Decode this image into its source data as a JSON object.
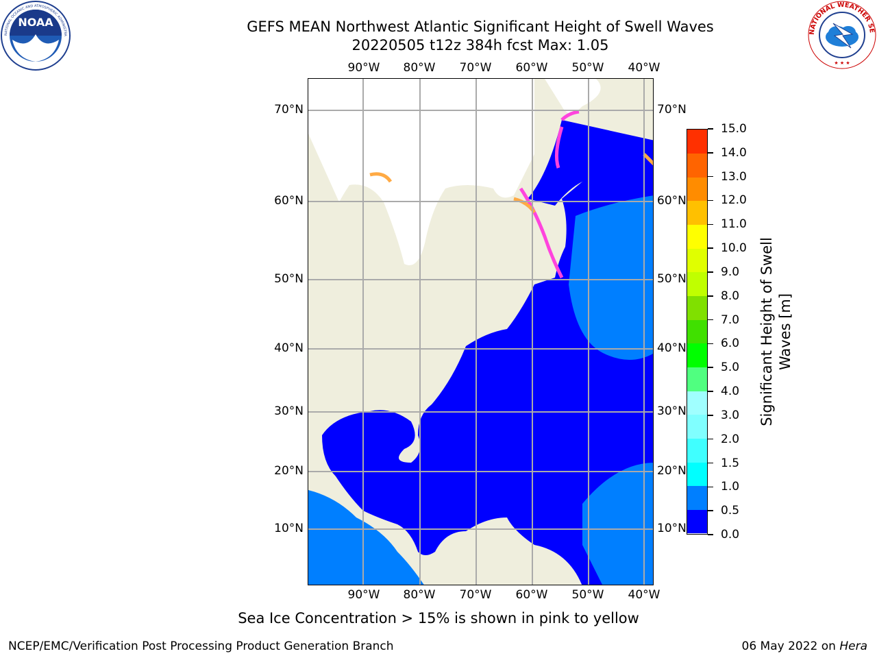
{
  "header": {
    "title_line1": "GEFS MEAN Northwest Atlantic Significant Height of Swell Waves",
    "title_line2": "20220505 t12z 384h fcst   Max: 1.05"
  },
  "logos": {
    "noaa_text": "NOAA",
    "noaa_ring_text": "NATIONAL OCEANIC AND ATMOSPHERIC ADMINISTRATION · U.S. DEPARTMENT OF COMMERCE",
    "nws_ring_text": "NATIONAL WEATHER SERVICE"
  },
  "map": {
    "lon_labels": [
      "90°W",
      "80°W",
      "70°W",
      "60°W",
      "50°W",
      "40°W"
    ],
    "lat_labels": [
      "70°N",
      "60°N",
      "50°N",
      "40°N",
      "30°N",
      "20°N",
      "10°N"
    ],
    "colors": {
      "land": "#efeedd",
      "ocean_low": "#0000ff",
      "ocean_mid": "#007fff",
      "ice_free_land": "#ffffff",
      "gridline": "#aaaaaa",
      "ice_pink": "#ff44dd",
      "ice_orange": "#ffaa44"
    }
  },
  "colorbar": {
    "title": "Significant Height of Swell Waves [m]",
    "title_line1": "Significant Height of Swell",
    "title_line2": "Waves [m]",
    "labels": [
      "0.0",
      "0.5",
      "1.0",
      "1.5",
      "2.0",
      "3.0",
      "4.0",
      "5.0",
      "6.0",
      "7.0",
      "8.0",
      "9.0",
      "10.0",
      "11.0",
      "12.0",
      "13.0",
      "14.0",
      "15.0"
    ],
    "colors": [
      "#0000ff",
      "#007fff",
      "#00ffff",
      "#40ffff",
      "#80ffff",
      "#a0ffff",
      "#50ff80",
      "#00ff00",
      "#40e000",
      "#80e000",
      "#c0ff00",
      "#e0ff00",
      "#ffff00",
      "#ffc000",
      "#ff8c00",
      "#ff6400",
      "#ff3000"
    ]
  },
  "caption": "Sea Ice Concentration > 15% is shown in pink to yellow",
  "footer": {
    "left": "NCEP/EMC/Verification Post Processing Product Generation Branch",
    "right_date": "06 May 2022 on ",
    "right_host": "Hera"
  }
}
